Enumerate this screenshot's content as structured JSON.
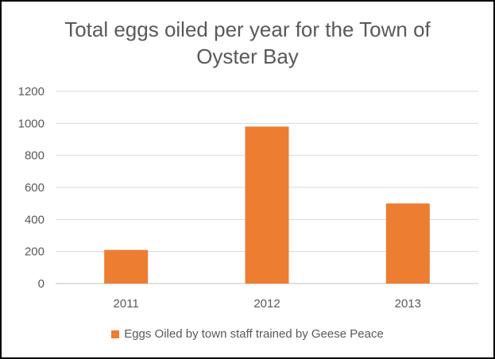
{
  "title_lines": [
    "Total eggs oiled per year for the Town of",
    "Oyster Bay"
  ],
  "chart_data": {
    "type": "bar",
    "title": "Total eggs oiled per year for the Town of Oyster Bay",
    "categories": [
      "2011",
      "2012",
      "2013"
    ],
    "series": [
      {
        "name": "Eggs Oiled by town staff trained by Geese Peace",
        "values": [
          210,
          980,
          500
        ],
        "color": "#ED7D31"
      }
    ],
    "ylim": [
      0,
      1200
    ],
    "yticks": [
      "0",
      "200",
      "400",
      "600",
      "800",
      "1000",
      "1200"
    ],
    "grid": true,
    "legend": "bottom"
  }
}
